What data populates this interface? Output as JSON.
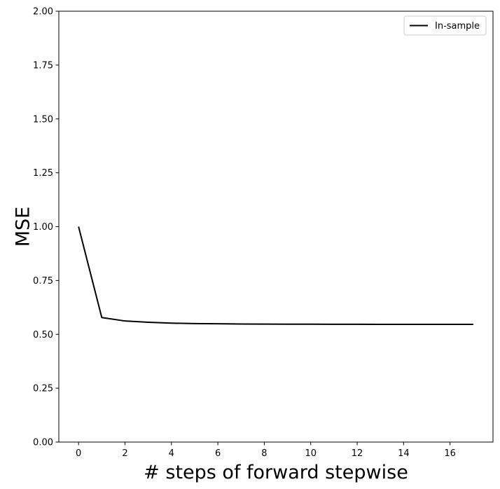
{
  "chart_data": {
    "type": "line",
    "title": "",
    "xlabel": "# steps of forward stepwise",
    "ylabel": "MSE",
    "xlim": [
      -0.85,
      17.85
    ],
    "ylim": [
      0,
      2
    ],
    "x_ticks": [
      0,
      2,
      4,
      6,
      8,
      10,
      12,
      14,
      16
    ],
    "y_ticks": [
      0.0,
      0.25,
      0.5,
      0.75,
      1.0,
      1.25,
      1.5,
      1.75,
      2.0
    ],
    "y_tick_labels": [
      "0.00",
      "0.25",
      "0.50",
      "0.75",
      "1.00",
      "1.25",
      "1.50",
      "1.75",
      "2.00"
    ],
    "grid": false,
    "legend_position": "top-right",
    "series": [
      {
        "name": "In-sample",
        "color": "#000000",
        "x": [
          0,
          1,
          2,
          3,
          4,
          5,
          6,
          7,
          8,
          9,
          10,
          11,
          12,
          13,
          14,
          15,
          16,
          17
        ],
        "values": [
          1.0,
          0.578,
          0.562,
          0.556,
          0.552,
          0.55,
          0.549,
          0.548,
          0.5475,
          0.547,
          0.547,
          0.5468,
          0.5466,
          0.5465,
          0.5464,
          0.5463,
          0.5462,
          0.5462
        ]
      }
    ]
  }
}
